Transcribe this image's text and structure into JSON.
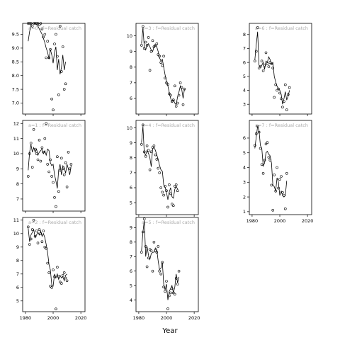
{
  "chart_data": {
    "type": "scatter",
    "xlabel": "Year",
    "x_ticks": [
      1980,
      2000,
      2020
    ],
    "xlim": [
      1978,
      2023
    ],
    "years": [
      1982,
      1983,
      1984,
      1985,
      1986,
      1987,
      1988,
      1989,
      1990,
      1991,
      1992,
      1993,
      1994,
      1995,
      1996,
      1997,
      1998,
      1999,
      2000,
      2001,
      2002,
      2003,
      2004,
      2005,
      2006,
      2007,
      2008,
      2009,
      2010,
      2011,
      2012,
      2013,
      2014,
      2015,
      2016,
      2017,
      2018,
      2019,
      2020
    ],
    "panels": [
      {
        "id": "a0",
        "title": "a=0  :  f=Residual catch",
        "ylim": [
          6.6,
          9.9
        ],
        "yticks": [
          7.0,
          7.5,
          8.0,
          8.5,
          9.0,
          9.5
        ],
        "ytick_labels": [
          "7.0",
          "7.5",
          "8.0",
          "8.5",
          "9.0",
          "9.5"
        ],
        "x_axis_labels": false,
        "line": [
          9.25,
          9.6,
          9.85,
          9.9,
          9.9,
          9.9,
          9.85,
          9.8,
          9.7,
          9.6,
          9.5,
          9.35,
          9.2,
          9.0,
          8.85,
          8.6,
          8.95,
          8.75,
          8.45,
          8.85,
          9.05,
          8.2,
          8.6,
          8.05,
          8.3,
          8.75,
          8.2,
          8.5
        ],
        "points": [
          9.9,
          9.9,
          9.9,
          9.8,
          9.9,
          9.9,
          9.9,
          9.9,
          9.85,
          9.9,
          9.7,
          9.4,
          9.5,
          8.65,
          9.25,
          8.65,
          8.95,
          7.15,
          6.75,
          9.15,
          9.5,
          8.7,
          7.3,
          9.8,
          8.15,
          9.05,
          7.5,
          7.7
        ]
      },
      {
        "id": "a1",
        "title": "a=1  :  f=Residual catch",
        "ylim": [
          6.2,
          12.2
        ],
        "yticks": [
          7,
          8,
          9,
          10,
          11,
          12
        ],
        "ytick_labels": [
          "7",
          "8",
          "9",
          "10",
          "11",
          "12"
        ],
        "x_axis_labels": false,
        "line": [
          8.9,
          10.1,
          10.6,
          10.1,
          10.4,
          10.1,
          10.3,
          9.9,
          10.1,
          10.2,
          10.3,
          10.0,
          10.2,
          9.9,
          10.3,
          10.2,
          9.4,
          9.2,
          9.3,
          8.6,
          8.2,
          7.7,
          8.9,
          9.3,
          8.6,
          9.2,
          9.1,
          8.7,
          9.3,
          9.0,
          8.6,
          9.2
        ],
        "points": [
          8.5,
          10.0,
          10.7,
          9.1,
          11.6,
          10.3,
          10.0,
          9.6,
          10.9,
          9.5,
          10.4,
          10.1,
          11.0,
          12.0,
          9.3,
          8.8,
          9.6,
          8.5,
          8.1,
          7.1,
          6.5,
          9.8,
          7.5,
          8.9,
          9.7,
          9.0,
          8.6,
          9.4,
          7.8,
          10.1,
          9.0,
          9.3
        ]
      },
      {
        "id": "a2",
        "title": "a=2  :  f=Residual catch",
        "ylim": [
          4.2,
          11.2
        ],
        "yticks": [
          5,
          6,
          7,
          8,
          9,
          10,
          11
        ],
        "ytick_labels": [
          "5",
          "6",
          "7",
          "8",
          "9",
          "10",
          "11"
        ],
        "x_axis_labels": true,
        "line": [
          10.4,
          9.4,
          9.9,
          10.1,
          10.3,
          9.7,
          9.9,
          10.1,
          9.9,
          10.2,
          9.8,
          10.0,
          9.7,
          9.2,
          8.6,
          7.7,
          7.3,
          6.2,
          6.1,
          7.0,
          6.7,
          7.0,
          6.6,
          6.9,
          6.7,
          6.8,
          6.5,
          6.9,
          7.0
        ],
        "points": [
          10.5,
          9.2,
          9.6,
          10.3,
          11.0,
          9.8,
          10.2,
          9.3,
          10.3,
          10.0,
          9.4,
          10.2,
          9.0,
          8.9,
          7.8,
          7.1,
          6.1,
          6.0,
          7.3,
          6.8,
          4.4,
          7.5,
          6.8,
          6.4,
          6.3,
          6.9,
          7.1,
          6.7,
          6.5
        ]
      },
      {
        "id": "a3",
        "title": "a=3  :  f=Residual catch",
        "ylim": [
          5.0,
          10.8
        ],
        "yticks": [
          6,
          7,
          8,
          9,
          10
        ],
        "ytick_labels": [
          "6",
          "7",
          "8",
          "9",
          "10"
        ],
        "x_axis_labels": false,
        "line": [
          9.5,
          10.5,
          9.3,
          9.1,
          9.4,
          9.5,
          9.3,
          9.1,
          9.0,
          9.3,
          9.4,
          9.3,
          9.0,
          8.6,
          8.4,
          8.5,
          8.0,
          7.5,
          7.1,
          6.8,
          6.4,
          6.0,
          5.8,
          5.9,
          5.7,
          5.6,
          6.1,
          6.4,
          6.8,
          6.6,
          6.0,
          6.6
        ],
        "points": [
          9.4,
          10.6,
          9.2,
          9.6,
          9.4,
          9.9,
          7.8,
          9.0,
          9.7,
          9.3,
          9.4,
          9.5,
          8.8,
          8.7,
          8.3,
          8.1,
          8.7,
          7.3,
          7.0,
          6.9,
          6.3,
          6.2,
          5.8,
          5.9,
          6.8,
          5.5,
          5.7,
          6.2,
          7.0,
          6.7,
          5.6,
          6.6
        ]
      },
      {
        "id": "a4",
        "title": "a=4  :  f=Residual catch",
        "ylim": [
          4.2,
          10.5
        ],
        "yticks": [
          5,
          6,
          7,
          8,
          9,
          10
        ],
        "ytick_labels": [
          "5",
          "6",
          "7",
          "8",
          "9",
          "10"
        ],
        "x_axis_labels": false,
        "line": [
          9.0,
          10.1,
          8.3,
          8.2,
          8.5,
          8.3,
          8.0,
          7.4,
          8.6,
          8.7,
          8.5,
          8.2,
          7.9,
          7.5,
          7.2,
          7.1,
          6.2,
          6.0,
          5.7,
          5.2,
          5.7,
          6.0,
          5.4,
          5.3,
          5.9,
          6.1,
          5.9
        ],
        "points": [
          8.9,
          10.2,
          8.4,
          8.1,
          8.8,
          8.5,
          7.2,
          8.4,
          8.7,
          8.8,
          8.2,
          7.9,
          7.3,
          7.0,
          6.0,
          5.7,
          5.5,
          6.1,
          5.8,
          4.7,
          6.2,
          5.6,
          4.9,
          4.8,
          6.1,
          6.2,
          5.8
        ]
      },
      {
        "id": "a5",
        "title": "a=5  :  f=Residual catch",
        "ylim": [
          3.2,
          9.7
        ],
        "yticks": [
          4,
          5,
          6,
          7,
          8,
          9
        ],
        "ytick_labels": [
          "4",
          "5",
          "6",
          "7",
          "8",
          "9"
        ],
        "x_axis_labels": true,
        "line": [
          7.4,
          8.7,
          9.5,
          7.0,
          7.7,
          7.1,
          6.8,
          7.2,
          7.3,
          7.3,
          7.6,
          7.5,
          6.7,
          6.1,
          6.2,
          6.6,
          5.1,
          4.7,
          5.1,
          4.0,
          4.6,
          4.8,
          5.0,
          4.5,
          4.9,
          5.8,
          5.2,
          5.6
        ],
        "points": [
          7.3,
          8.7,
          9.6,
          7.7,
          6.3,
          6.9,
          7.5,
          7.4,
          6.0,
          8.0,
          7.4,
          7.3,
          7.7,
          6.0,
          5.8,
          6.6,
          4.9,
          4.6,
          5.3,
          3.4,
          4.3,
          4.5,
          4.8,
          4.5,
          4.4,
          5.5,
          5.1,
          6.0
        ]
      },
      {
        "id": "a6",
        "title": "a=6  :  f=Residual catch",
        "ylim": [
          2.3,
          8.8
        ],
        "yticks": [
          3,
          4,
          5,
          6,
          7,
          8
        ],
        "ytick_labels": [
          "3",
          "4",
          "5",
          "6",
          "7",
          "8"
        ],
        "x_axis_labels": false,
        "line": [
          6.2,
          7.3,
          8.2,
          5.8,
          5.7,
          5.8,
          6.0,
          5.5,
          6.1,
          6.0,
          6.4,
          6.2,
          5.9,
          6.0,
          5.0,
          4.6,
          4.3,
          4.1,
          4.0,
          3.7,
          3.0,
          3.4,
          3.9,
          3.3,
          3.6,
          4.0
        ],
        "points": [
          6.1,
          6.8,
          8.5,
          5.6,
          5.7,
          6.1,
          5.4,
          5.8,
          6.7,
          5.9,
          5.7,
          6.0,
          5.9,
          5.6,
          3.5,
          4.4,
          4.0,
          4.1,
          3.8,
          3.4,
          2.8,
          3.2,
          4.4,
          2.6,
          3.7,
          4.2
        ]
      },
      {
        "id": "a7",
        "title": "a=7  :  f=Residual catch",
        "ylim": [
          0.8,
          7.2
        ],
        "yticks": [
          1,
          2,
          3,
          4,
          5,
          6
        ],
        "ytick_labels": [
          "1",
          "2",
          "3",
          "4",
          "5",
          "6"
        ],
        "x_axis_labels": true,
        "line": [
          5.3,
          6.1,
          6.8,
          6.5,
          5.5,
          5.3,
          4.1,
          4.3,
          5.0,
          5.1,
          4.9,
          4.8,
          4.3,
          2.8,
          2.7,
          2.4,
          3.3,
          3.0,
          2.1,
          2.4,
          2.1,
          2.0,
          2.1,
          3.1
        ],
        "points": [
          5.5,
          6.3,
          6.8,
          6.4,
          5.3,
          4.2,
          3.6,
          4.5,
          5.6,
          5.7,
          4.7,
          4.5,
          2.8,
          1.1,
          3.5,
          2.4,
          4.0,
          2.6,
          3.2,
          3.4,
          2.3,
          2.1,
          1.2,
          3.6
        ]
      }
    ]
  }
}
